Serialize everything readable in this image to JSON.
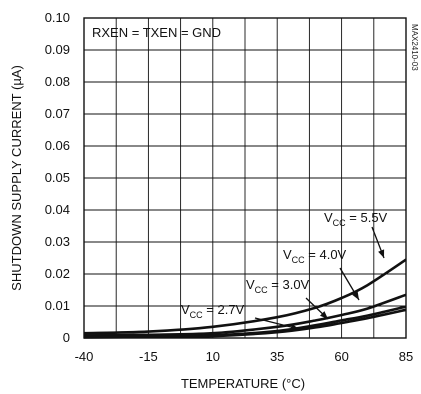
{
  "chart_data": {
    "type": "line",
    "title": "",
    "xlabel": "TEMPERATURE (°C)",
    "ylabel": "SHUTDOWN SUPPLY CURRENT (µA)",
    "xlim": [
      -40,
      85
    ],
    "ylim": [
      0,
      0.1
    ],
    "grid": true,
    "x_ticks": [
      "-40",
      "-15",
      "10",
      "35",
      "60",
      "85"
    ],
    "y_ticks": [
      "0",
      "0.01",
      "0.02",
      "0.03",
      "0.04",
      "0.05",
      "0.06",
      "0.07",
      "0.08",
      "0.09",
      "0.10"
    ],
    "annotation_text": "RXEN = TXEN = GND",
    "figure_code": "MAX2410-03",
    "series": [
      {
        "name": "VCC = 5.5V",
        "label_main": "V",
        "label_sub": "CC",
        "label_rest": " = 5.5V",
        "color": "#111111",
        "x": [
          -40,
          -15,
          10,
          35,
          50,
          60,
          70,
          85
        ],
        "y": [
          0.0015,
          0.002,
          0.0035,
          0.0065,
          0.0095,
          0.0125,
          0.0165,
          0.0245
        ]
      },
      {
        "name": "VCC = 4.0V",
        "label_main": "V",
        "label_sub": "CC",
        "label_rest": " = 4.0V",
        "color": "#111111",
        "x": [
          -40,
          -15,
          10,
          35,
          50,
          60,
          70,
          85
        ],
        "y": [
          0.0008,
          0.001,
          0.0015,
          0.0035,
          0.0055,
          0.0072,
          0.0092,
          0.0135
        ]
      },
      {
        "name": "VCC = 3.0V",
        "label_main": "V",
        "label_sub": "CC",
        "label_rest": " = 3.0V",
        "color": "#111111",
        "x": [
          -40,
          -15,
          10,
          35,
          50,
          60,
          70,
          85
        ],
        "y": [
          0.0004,
          0.0005,
          0.0008,
          0.0022,
          0.004,
          0.0055,
          0.007,
          0.0098
        ]
      },
      {
        "name": "VCC = 2.7V",
        "label_main": "V",
        "label_sub": "CC",
        "label_rest": " = 2.7V",
        "color": "#111111",
        "x": [
          -40,
          -15,
          10,
          35,
          50,
          60,
          70,
          85
        ],
        "y": [
          0.0002,
          0.0003,
          0.0006,
          0.0018,
          0.0033,
          0.0047,
          0.0062,
          0.0088
        ]
      }
    ]
  }
}
